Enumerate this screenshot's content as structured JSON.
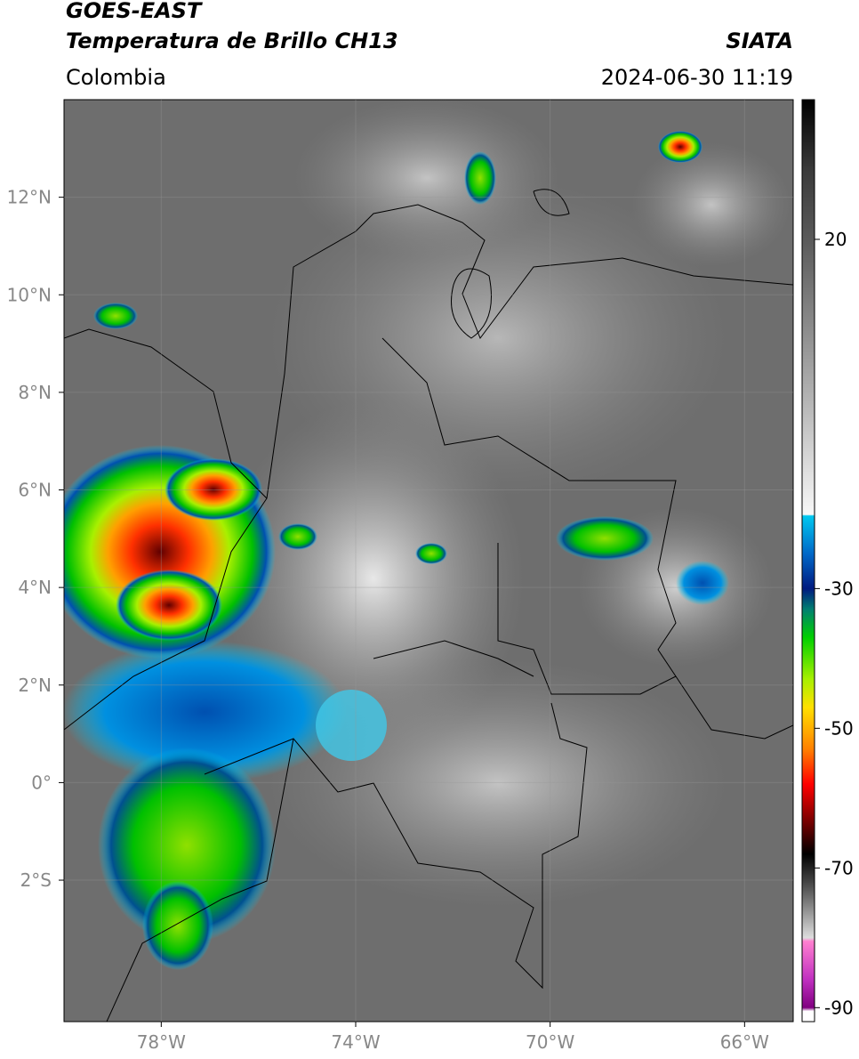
{
  "header": {
    "title": "GOES-EAST",
    "subtitle": "Temperatura de Brillo CH13",
    "source": "SIATA",
    "region": "Colombia",
    "timestamp": "2024-06-30 11:19"
  },
  "map": {
    "xlim": [
      -80,
      -65
    ],
    "ylim": [
      -4.9,
      14
    ],
    "xticks": [
      {
        "value": -78,
        "label": "78°W"
      },
      {
        "value": -74,
        "label": "74°W"
      },
      {
        "value": -70,
        "label": "70°W"
      },
      {
        "value": -66,
        "label": "66°W"
      }
    ],
    "yticks": [
      {
        "value": 12,
        "label": "12°N"
      },
      {
        "value": 10,
        "label": "10°N"
      },
      {
        "value": 8,
        "label": "8°N"
      },
      {
        "value": 6,
        "label": "6°N"
      },
      {
        "value": 4,
        "label": "4°N"
      },
      {
        "value": 2,
        "label": "2°N"
      },
      {
        "value": 0,
        "label": "0°"
      },
      {
        "value": -2,
        "label": "2°S"
      }
    ],
    "grid": true
  },
  "colorbar": {
    "lim": [
      -92,
      40
    ],
    "ticks": [
      20,
      -30,
      -50,
      -70,
      -90
    ],
    "colormap": [
      {
        "value": 40,
        "color": "#000000"
      },
      {
        "value": 30,
        "color": "#3a3a3a"
      },
      {
        "value": 20,
        "color": "#5a5a5a"
      },
      {
        "value": 0,
        "color": "#a8a8a8"
      },
      {
        "value": -19.4,
        "color": "#f8f8f8"
      },
      {
        "value": -19.6,
        "color": "#00c8f0"
      },
      {
        "value": -25,
        "color": "#0068c8"
      },
      {
        "value": -30,
        "color": "#001a80"
      },
      {
        "value": -33,
        "color": "#008070"
      },
      {
        "value": -37,
        "color": "#00d000"
      },
      {
        "value": -43,
        "color": "#a8f000"
      },
      {
        "value": -47,
        "color": "#ffe000"
      },
      {
        "value": -53,
        "color": "#ff8000"
      },
      {
        "value": -58,
        "color": "#ff0000"
      },
      {
        "value": -63,
        "color": "#800000"
      },
      {
        "value": -68,
        "color": "#000000"
      },
      {
        "value": -72,
        "color": "#444444"
      },
      {
        "value": -80,
        "color": "#dddddd"
      },
      {
        "value": -80.5,
        "color": "#ff80d0"
      },
      {
        "value": -86,
        "color": "#c030c0"
      },
      {
        "value": -90,
        "color": "#800080"
      },
      {
        "value": -90.5,
        "color": "#ffffff"
      },
      {
        "value": -92,
        "color": "#ffffff"
      }
    ]
  }
}
